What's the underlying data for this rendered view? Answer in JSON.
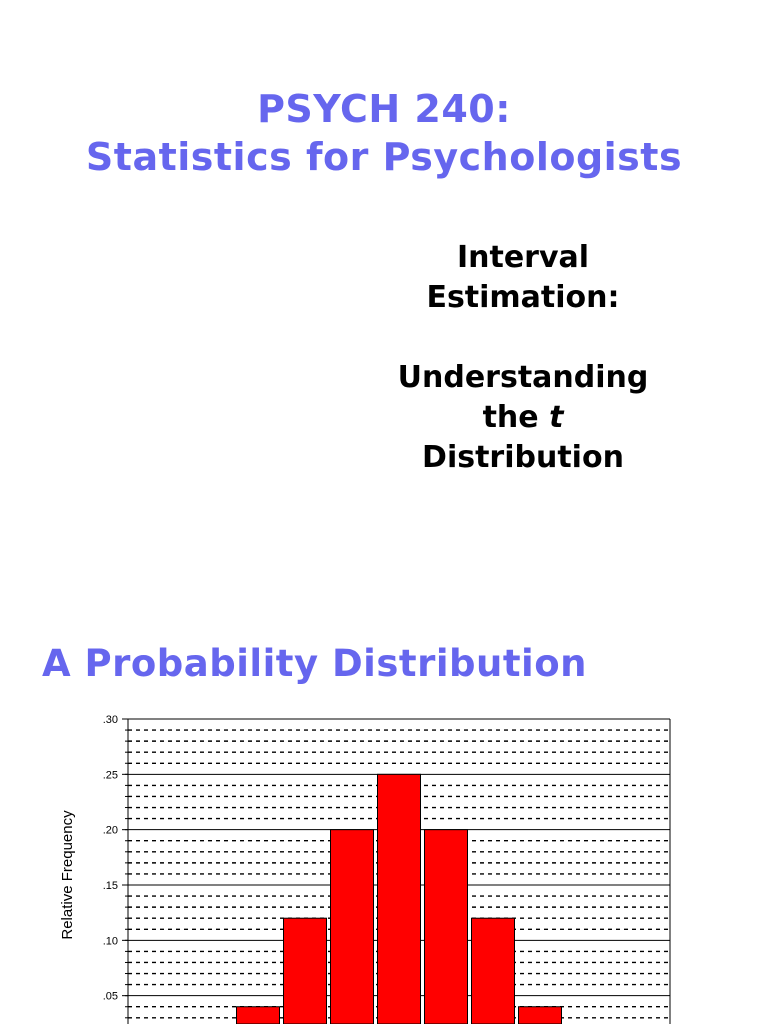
{
  "slide1": {
    "title_line1": "PSYCH 240:",
    "title_line2": "Statistics for Psychologists",
    "subtitle_line1": "Interval",
    "subtitle_line2": "Estimation:",
    "subtitle_line3": "Understanding",
    "subtitle_line4_prefix": "the ",
    "subtitle_line4_italic": "t",
    "subtitle_line5": "Distribution"
  },
  "slide2": {
    "heading": "A Probability Distribution"
  },
  "chart_data": {
    "type": "bar",
    "ylabel": "Relative Frequency",
    "xlabel": "",
    "ylim": [
      0,
      0.3
    ],
    "yticks": [
      ".05",
      ".10",
      ".15",
      ".20",
      ".25",
      ".30"
    ],
    "ytick_values": [
      0.05,
      0.1,
      0.15,
      0.2,
      0.25,
      0.3
    ],
    "values": [
      0.04,
      0.12,
      0.2,
      0.25,
      0.2,
      0.12,
      0.04
    ],
    "bar_color": "#ff0000",
    "grid": true
  }
}
